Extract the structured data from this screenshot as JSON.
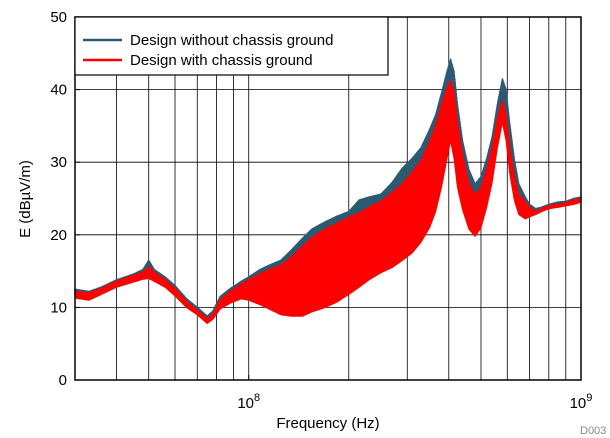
{
  "chart_data": {
    "type": "line",
    "x_scale": "log",
    "xlabel": "Frequency (Hz)",
    "ylabel": "E (dBµV/m)",
    "xlim": [
      30000000,
      1000000000
    ],
    "ylim": [
      0,
      50
    ],
    "x_ticks": [
      {
        "value": 100000000,
        "mantissa": "10",
        "exponent": "8"
      },
      {
        "value": 1000000000,
        "mantissa": "10",
        "exponent": "9"
      }
    ],
    "y_ticks": [
      {
        "value": 0,
        "label": "0"
      },
      {
        "value": 10,
        "label": "10"
      },
      {
        "value": 20,
        "label": "20"
      },
      {
        "value": 30,
        "label": "30"
      },
      {
        "value": 40,
        "label": "40"
      },
      {
        "value": 50,
        "label": "50"
      }
    ],
    "grid": true,
    "legend_position": "top-left",
    "figure_id": "D003",
    "series": [
      {
        "name": "Design without chassis ground",
        "color": "#2c5a72",
        "envelope": {
          "x": [
            30000000,
            33000000,
            36000000,
            40000000,
            45000000,
            48000000,
            50000000,
            52000000,
            56000000,
            60000000,
            65000000,
            70000000,
            75000000,
            78000000,
            82000000,
            88000000,
            95000000,
            100000000,
            108000000,
            115000000,
            125000000,
            135000000,
            145000000,
            155000000,
            170000000,
            185000000,
            200000000,
            215000000,
            230000000,
            250000000,
            270000000,
            290000000,
            310000000,
            330000000,
            350000000,
            365000000,
            380000000,
            395000000,
            405000000,
            415000000,
            425000000,
            440000000,
            460000000,
            480000000,
            500000000,
            520000000,
            540000000,
            560000000,
            580000000,
            595000000,
            610000000,
            630000000,
            650000000,
            680000000,
            700000000,
            730000000,
            760000000,
            800000000,
            850000000,
            900000000,
            950000000,
            1000000000
          ],
          "upper": [
            12.5,
            12.2,
            12.8,
            13.8,
            14.6,
            15.2,
            16.5,
            15.2,
            14.2,
            13.0,
            11.2,
            10.0,
            8.8,
            9.5,
            11.5,
            12.6,
            13.6,
            14.2,
            15.2,
            15.8,
            16.5,
            18.0,
            19.5,
            20.8,
            21.8,
            22.6,
            23.2,
            24.8,
            25.2,
            25.6,
            27.2,
            29.2,
            30.5,
            32.0,
            34.5,
            36.5,
            39.5,
            42.5,
            44.2,
            42.5,
            38.0,
            33.0,
            29.0,
            27.0,
            28.0,
            30.5,
            33.5,
            38.0,
            41.5,
            40.0,
            35.5,
            30.5,
            27.0,
            25.2,
            24.2,
            23.6,
            23.8,
            24.2,
            24.5,
            24.6,
            25.0,
            25.2
          ],
          "lower": [
            11.5,
            11.3,
            12.0,
            13.0,
            13.8,
            14.2,
            14.2,
            14.0,
            13.2,
            12.0,
            10.5,
            9.4,
            8.2,
            8.8,
            10.2,
            11.0,
            11.6,
            11.6,
            11.0,
            10.4,
            9.8,
            9.2,
            9.2,
            9.8,
            10.4,
            11.2,
            12.2,
            13.4,
            14.5,
            15.2,
            16.0,
            17.0,
            18.0,
            19.5,
            21.5,
            24.0,
            27.5,
            31.5,
            34.0,
            32.0,
            28.0,
            24.5,
            21.5,
            20.2,
            21.5,
            24.5,
            28.0,
            33.0,
            37.0,
            34.5,
            29.5,
            25.5,
            23.2,
            22.5,
            22.8,
            23.2,
            23.6,
            24.0,
            24.2,
            24.3,
            24.5,
            24.8
          ]
        }
      },
      {
        "name": "Design with chassis ground",
        "color": "#ff0000",
        "envelope": {
          "x": [
            30000000,
            33000000,
            36000000,
            40000000,
            45000000,
            48000000,
            50000000,
            52000000,
            56000000,
            60000000,
            65000000,
            70000000,
            75000000,
            78000000,
            82000000,
            88000000,
            95000000,
            100000000,
            108000000,
            115000000,
            125000000,
            135000000,
            145000000,
            155000000,
            170000000,
            185000000,
            200000000,
            215000000,
            230000000,
            250000000,
            270000000,
            290000000,
            310000000,
            330000000,
            350000000,
            365000000,
            380000000,
            395000000,
            405000000,
            415000000,
            425000000,
            440000000,
            460000000,
            480000000,
            500000000,
            520000000,
            540000000,
            560000000,
            580000000,
            595000000,
            610000000,
            630000000,
            650000000,
            680000000,
            700000000,
            730000000,
            760000000,
            800000000,
            850000000,
            900000000,
            950000000,
            1000000000
          ],
          "upper": [
            12.2,
            12.0,
            12.6,
            13.6,
            14.4,
            14.8,
            15.6,
            14.8,
            13.8,
            12.6,
            10.8,
            9.6,
            8.4,
            9.0,
            11.0,
            12.2,
            13.2,
            13.8,
            14.6,
            15.2,
            15.8,
            17.0,
            18.4,
            19.6,
            20.8,
            21.6,
            22.4,
            23.0,
            23.8,
            24.6,
            25.8,
            27.0,
            28.6,
            30.2,
            32.8,
            35.0,
            37.8,
            40.2,
            41.2,
            39.5,
            35.5,
            31.0,
            27.0,
            25.5,
            26.5,
            29.0,
            32.0,
            36.0,
            38.5,
            36.5,
            32.0,
            28.0,
            25.5,
            24.5,
            23.8,
            23.2,
            23.6,
            24.0,
            24.2,
            24.4,
            24.8,
            25.0
          ],
          "lower": [
            11.3,
            11.0,
            11.8,
            12.8,
            13.5,
            13.9,
            14.0,
            13.6,
            12.8,
            11.6,
            10.0,
            9.0,
            7.8,
            8.4,
            9.8,
            10.6,
            11.2,
            11.0,
            10.4,
            9.8,
            9.0,
            8.8,
            8.8,
            9.4,
            10.0,
            10.8,
            11.8,
            12.8,
            13.8,
            14.8,
            15.5,
            16.5,
            17.5,
            19.0,
            21.0,
            23.2,
            26.5,
            30.5,
            33.0,
            30.5,
            26.5,
            23.5,
            20.8,
            19.8,
            21.0,
            23.8,
            27.2,
            32.0,
            35.5,
            33.0,
            28.5,
            24.8,
            22.8,
            22.2,
            22.5,
            22.8,
            23.2,
            23.6,
            23.8,
            24.0,
            24.2,
            24.5
          ]
        }
      }
    ]
  }
}
